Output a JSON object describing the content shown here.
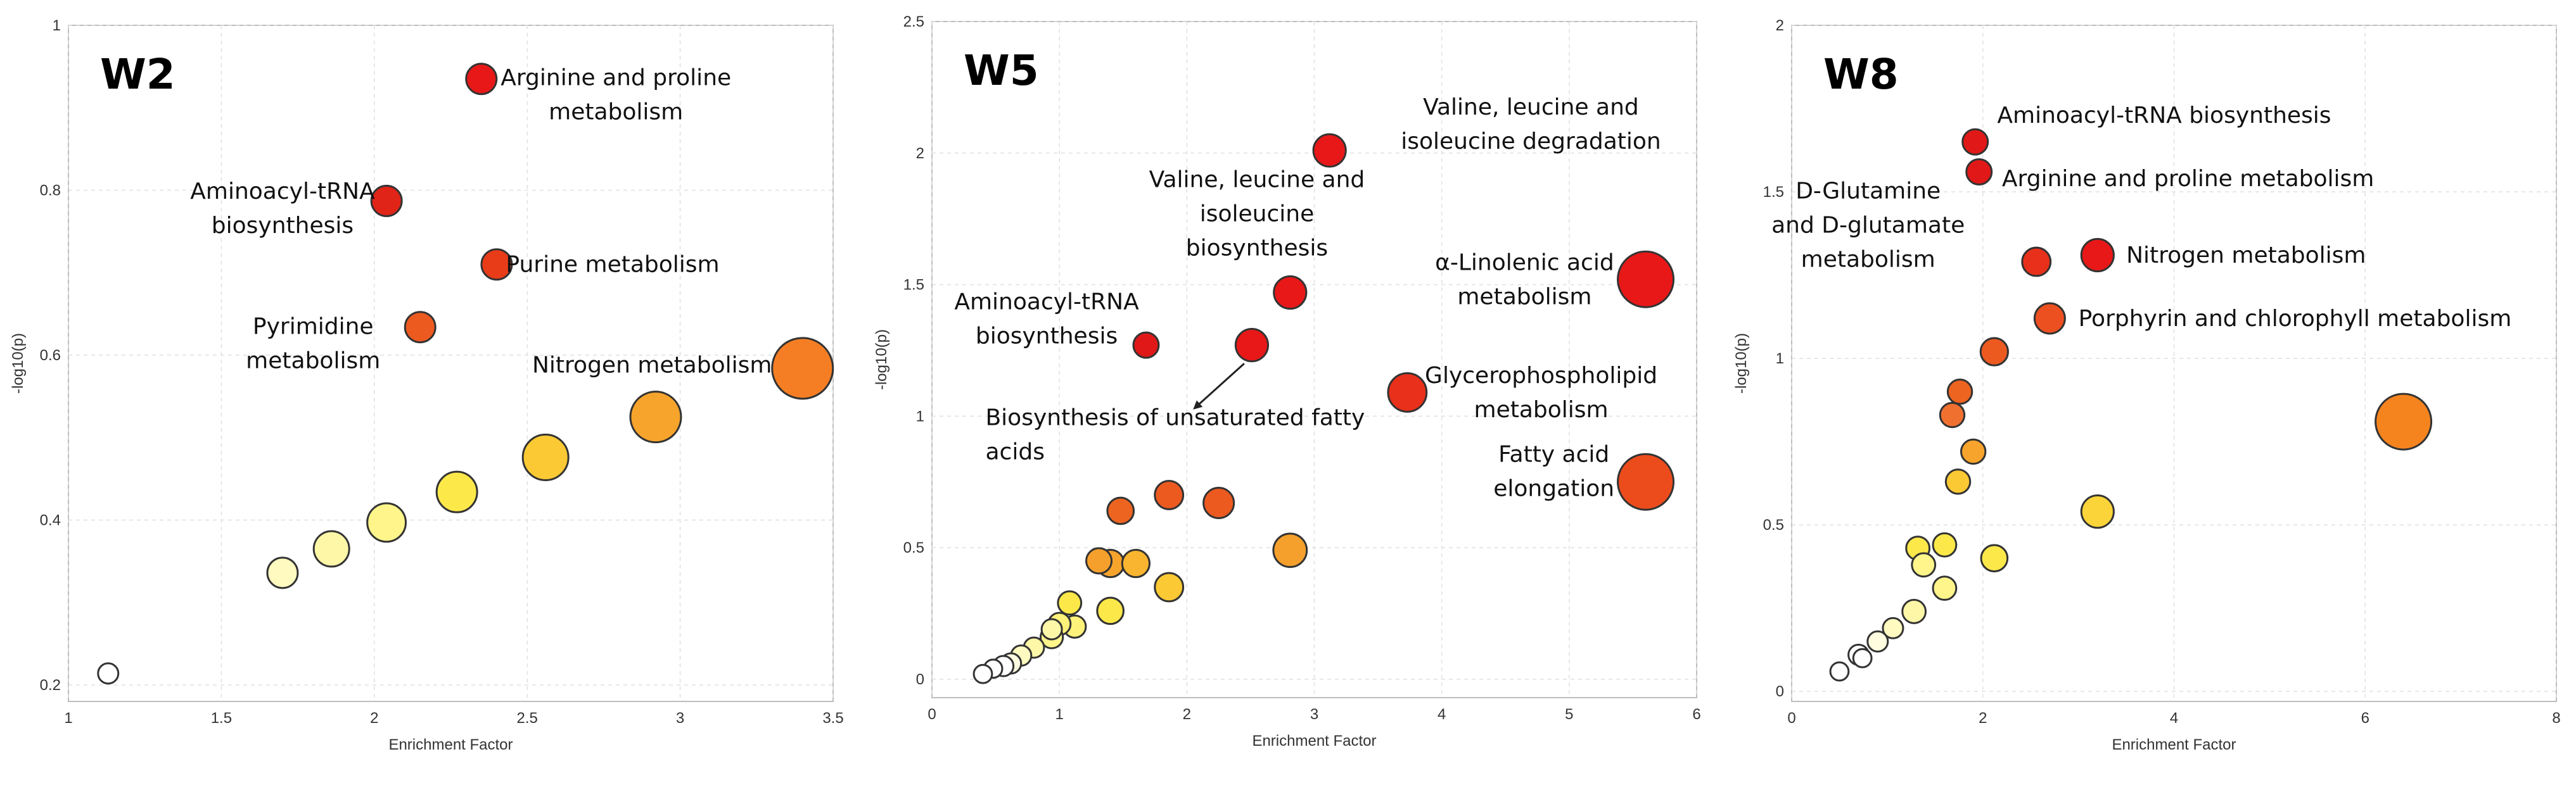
{
  "chart_data": [
    {
      "type": "scatter",
      "title": "W2",
      "xlabel": "Enrichment Factor",
      "ylabel": "-log10(p)",
      "xlim": [
        1,
        3.5
      ],
      "ylim": [
        0.18,
        1.0
      ],
      "xticks": [
        1,
        1.5,
        2,
        2.5,
        3,
        3.5
      ],
      "xtick_labels": [
        "1",
        "1.5",
        "2",
        "2.5",
        "3",
        "3.5"
      ],
      "yticks": [
        0.2,
        0.4,
        0.6,
        0.8,
        1
      ],
      "ytick_labels": [
        "0.2",
        "0.4",
        "0.6",
        "0.8",
        "1"
      ],
      "points": [
        {
          "x": 2.35,
          "y": 0.935,
          "size": 3,
          "color": "#e81818"
        },
        {
          "x": 2.04,
          "y": 0.787,
          "size": 3,
          "color": "#e02418"
        },
        {
          "x": 2.4,
          "y": 0.71,
          "size": 3,
          "color": "#e83c18"
        },
        {
          "x": 2.15,
          "y": 0.634,
          "size": 3,
          "color": "#ec5a20"
        },
        {
          "x": 3.4,
          "y": 0.584,
          "size": 6,
          "color": "#f57e24"
        },
        {
          "x": 2.92,
          "y": 0.525,
          "size": 5,
          "color": "#f7a42c"
        },
        {
          "x": 2.56,
          "y": 0.476,
          "size": 4.5,
          "color": "#fbc934"
        },
        {
          "x": 2.27,
          "y": 0.434,
          "size": 4,
          "color": "#fde84a"
        },
        {
          "x": 2.04,
          "y": 0.397,
          "size": 3.8,
          "color": "#fff58a"
        },
        {
          "x": 1.86,
          "y": 0.365,
          "size": 3.5,
          "color": "#fff7a8"
        },
        {
          "x": 1.7,
          "y": 0.336,
          "size": 3,
          "color": "#fffabf"
        },
        {
          "x": 1.13,
          "y": 0.214,
          "size": 2,
          "color": "#ffffff"
        }
      ],
      "annotations": [
        {
          "lines": [
            "Arginine and proline",
            "metabolism"
          ],
          "x": 2.79,
          "y": 0.916,
          "anchor": "middle"
        },
        {
          "lines": [
            "Aminoacyl-tRNA",
            "biosynthesis"
          ],
          "x": 1.7,
          "y": 0.778,
          "anchor": "middle"
        },
        {
          "lines": [
            "Purine metabolism"
          ],
          "x": 2.43,
          "y": 0.71,
          "anchor": "start"
        },
        {
          "lines": [
            "Pyrimidine",
            "metabolism"
          ],
          "x": 1.8,
          "y": 0.614,
          "anchor": "middle"
        },
        {
          "lines": [
            "Nitrogen metabolism"
          ],
          "x": 3.3,
          "y": 0.588,
          "anchor": "end"
        }
      ],
      "arrows": []
    },
    {
      "type": "scatter",
      "title": "W5",
      "xlabel": "Enrichment Factor",
      "ylabel": "-log10(p)",
      "xlim": [
        0,
        6
      ],
      "ylim": [
        -0.07,
        2.5
      ],
      "xticks": [
        0,
        1,
        2,
        3,
        4,
        5,
        6
      ],
      "xtick_labels": [
        "0",
        "1",
        "2",
        "3",
        "4",
        "5",
        "6"
      ],
      "yticks": [
        0,
        0.5,
        1,
        1.5,
        2,
        2.5
      ],
      "ytick_labels": [
        "0",
        "0.5",
        "1",
        "1.5",
        "2",
        "2.5"
      ],
      "points": [
        {
          "x": 3.12,
          "y": 2.01,
          "size": 3.2,
          "color": "#e81818"
        },
        {
          "x": 2.81,
          "y": 1.47,
          "size": 3.2,
          "color": "#e81818"
        },
        {
          "x": 5.6,
          "y": 1.52,
          "size": 5.5,
          "color": "#e81818"
        },
        {
          "x": 2.51,
          "y": 1.27,
          "size": 3.2,
          "color": "#e81818"
        },
        {
          "x": 1.68,
          "y": 1.27,
          "size": 2.5,
          "color": "#e01818"
        },
        {
          "x": 3.73,
          "y": 1.09,
          "size": 3.8,
          "color": "#e8301a"
        },
        {
          "x": 5.6,
          "y": 0.75,
          "size": 5.5,
          "color": "#ec4c1c"
        },
        {
          "x": 1.86,
          "y": 0.7,
          "size": 2.8,
          "color": "#ec5a20"
        },
        {
          "x": 2.25,
          "y": 0.67,
          "size": 3,
          "color": "#ec5a20"
        },
        {
          "x": 1.48,
          "y": 0.64,
          "size": 2.6,
          "color": "#ec6420"
        },
        {
          "x": 2.81,
          "y": 0.49,
          "size": 3.3,
          "color": "#f5a02c"
        },
        {
          "x": 1.31,
          "y": 0.45,
          "size": 2.5,
          "color": "#f5a02c"
        },
        {
          "x": 1.4,
          "y": 0.44,
          "size": 2.7,
          "color": "#f7a42c"
        },
        {
          "x": 1.6,
          "y": 0.44,
          "size": 2.7,
          "color": "#f9b52f"
        },
        {
          "x": 1.86,
          "y": 0.35,
          "size": 2.8,
          "color": "#fbc934"
        },
        {
          "x": 1.4,
          "y": 0.26,
          "size": 2.6,
          "color": "#fde84a"
        },
        {
          "x": 1.08,
          "y": 0.29,
          "size": 2.3,
          "color": "#fde84a"
        },
        {
          "x": 1.12,
          "y": 0.2,
          "size": 2.2,
          "color": "#fef27a"
        },
        {
          "x": 1.0,
          "y": 0.21,
          "size": 2.2,
          "color": "#fef27a"
        },
        {
          "x": 0.94,
          "y": 0.16,
          "size": 2.2,
          "color": "#fff58a"
        },
        {
          "x": 0.94,
          "y": 0.19,
          "size": 2,
          "color": "#fff7a8"
        },
        {
          "x": 0.8,
          "y": 0.12,
          "size": 2,
          "color": "#fff7a8"
        },
        {
          "x": 0.7,
          "y": 0.09,
          "size": 2,
          "color": "#fffabf"
        },
        {
          "x": 0.62,
          "y": 0.06,
          "size": 2,
          "color": "#fffce0"
        },
        {
          "x": 0.56,
          "y": 0.05,
          "size": 2,
          "color": "#ffffff"
        },
        {
          "x": 0.48,
          "y": 0.04,
          "size": 1.8,
          "color": "#ffffff"
        },
        {
          "x": 0.4,
          "y": 0.02,
          "size": 1.8,
          "color": "#ffffff"
        }
      ],
      "annotations": [
        {
          "lines": [
            "Valine, leucine and",
            "isoleucine degradation"
          ],
          "x": 4.7,
          "y": 2.11,
          "anchor": "middle"
        },
        {
          "lines": [
            "Valine, leucine and",
            "isoleucine",
            "biosynthesis"
          ],
          "x": 2.55,
          "y": 1.77,
          "anchor": "middle"
        },
        {
          "lines": [
            "Aminoacyl-tRNA",
            "biosynthesis"
          ],
          "x": 0.9,
          "y": 1.37,
          "anchor": "middle"
        },
        {
          "lines": [
            "α-Linolenic acid",
            "metabolism"
          ],
          "x": 4.65,
          "y": 1.52,
          "anchor": "middle"
        },
        {
          "lines": [
            "Glycerophospholipid",
            "metabolism"
          ],
          "x": 4.78,
          "y": 1.09,
          "anchor": "middle"
        },
        {
          "lines": [
            "Biosynthesis of unsaturated fatty",
            "acids"
          ],
          "x": 0.42,
          "y": 0.93,
          "anchor": "start"
        },
        {
          "lines": [
            "Fatty acid",
            "elongation"
          ],
          "x": 4.88,
          "y": 0.79,
          "anchor": "middle"
        }
      ],
      "arrows": [
        {
          "from": [
            2.45,
            1.2
          ],
          "to": [
            2.06,
            1.03
          ]
        }
      ]
    },
    {
      "type": "scatter",
      "title": "W8",
      "xlabel": "Enrichment Factor",
      "ylabel": "-log10(p)",
      "xlim": [
        0,
        8
      ],
      "ylim": [
        -0.03,
        2.0
      ],
      "xticks": [
        0,
        2,
        4,
        6,
        8
      ],
      "xtick_labels": [
        "0",
        "2",
        "4",
        "6",
        "8"
      ],
      "yticks": [
        0,
        0.5,
        1,
        1.5,
        2
      ],
      "ytick_labels": [
        "0",
        "0.5",
        "1",
        "1.5",
        "2"
      ],
      "points": [
        {
          "x": 1.92,
          "y": 1.65,
          "size": 2.5,
          "color": "#e01818"
        },
        {
          "x": 1.96,
          "y": 1.56,
          "size": 2.5,
          "color": "#e01818"
        },
        {
          "x": 3.2,
          "y": 1.31,
          "size": 3.2,
          "color": "#e81818"
        },
        {
          "x": 2.56,
          "y": 1.29,
          "size": 2.8,
          "color": "#e8301a"
        },
        {
          "x": 2.7,
          "y": 1.12,
          "size": 3,
          "color": "#ec5020"
        },
        {
          "x": 6.4,
          "y": 0.81,
          "size": 5.5,
          "color": "#f5841f"
        },
        {
          "x": 2.12,
          "y": 1.02,
          "size": 2.7,
          "color": "#ec5a20"
        },
        {
          "x": 1.76,
          "y": 0.9,
          "size": 2.4,
          "color": "#ec6420"
        },
        {
          "x": 1.68,
          "y": 0.83,
          "size": 2.4,
          "color": "#f07030"
        },
        {
          "x": 1.9,
          "y": 0.72,
          "size": 2.4,
          "color": "#f7a42c"
        },
        {
          "x": 1.74,
          "y": 0.63,
          "size": 2.4,
          "color": "#fbc934"
        },
        {
          "x": 3.2,
          "y": 0.54,
          "size": 3.2,
          "color": "#fbd43a"
        },
        {
          "x": 1.6,
          "y": 0.44,
          "size": 2.3,
          "color": "#fde84a"
        },
        {
          "x": 1.32,
          "y": 0.43,
          "size": 2.3,
          "color": "#fde84a"
        },
        {
          "x": 2.12,
          "y": 0.4,
          "size": 2.6,
          "color": "#fde84a"
        },
        {
          "x": 1.38,
          "y": 0.38,
          "size": 2.3,
          "color": "#fff58a"
        },
        {
          "x": 1.6,
          "y": 0.31,
          "size": 2.3,
          "color": "#fff58a"
        },
        {
          "x": 1.28,
          "y": 0.24,
          "size": 2.3,
          "color": "#fff7a8"
        },
        {
          "x": 1.06,
          "y": 0.19,
          "size": 2,
          "color": "#fffabf"
        },
        {
          "x": 0.9,
          "y": 0.15,
          "size": 2,
          "color": "#fffce0"
        },
        {
          "x": 0.7,
          "y": 0.11,
          "size": 2,
          "color": "#ffffff"
        },
        {
          "x": 0.74,
          "y": 0.1,
          "size": 1.8,
          "color": "#ffffff"
        },
        {
          "x": 0.5,
          "y": 0.06,
          "size": 1.8,
          "color": "#ffffff"
        }
      ],
      "annotations": [
        {
          "lines": [
            "Aminoacyl-tRNA biosynthesis"
          ],
          "x": 2.15,
          "y": 1.73,
          "anchor": "start"
        },
        {
          "lines": [
            "Arginine and proline metabolism"
          ],
          "x": 2.2,
          "y": 1.54,
          "anchor": "start"
        },
        {
          "lines": [
            "D-Glutamine",
            "and D-glutamate",
            "metabolism"
          ],
          "x": 0.8,
          "y": 1.4,
          "anchor": "middle"
        },
        {
          "lines": [
            "Nitrogen metabolism"
          ],
          "x": 3.5,
          "y": 1.31,
          "anchor": "start"
        },
        {
          "lines": [
            "Porphyrin and chlorophyll metabolism"
          ],
          "x": 3.0,
          "y": 1.12,
          "anchor": "start"
        }
      ],
      "arrows": []
    }
  ]
}
